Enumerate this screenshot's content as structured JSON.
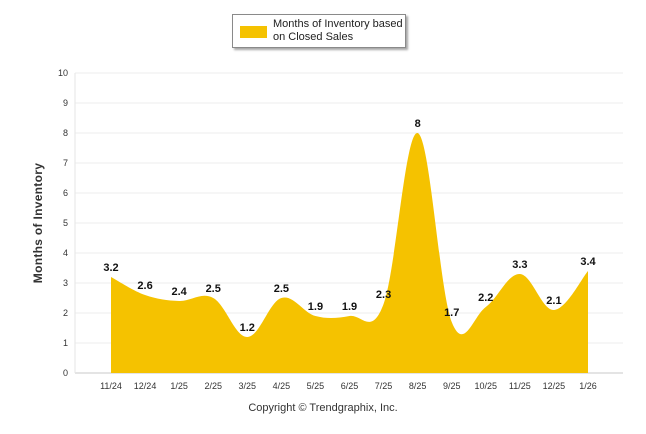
{
  "chart_data": {
    "type": "area",
    "categories": [
      "11/24",
      "12/24",
      "1/25",
      "2/25",
      "3/25",
      "4/25",
      "5/25",
      "6/25",
      "7/25",
      "8/25",
      "9/25",
      "10/25",
      "11/25",
      "12/25",
      "1/26"
    ],
    "series": [
      {
        "name": "Months of Inventory based on Closed Sales",
        "values": [
          3.2,
          2.6,
          2.4,
          2.5,
          1.2,
          2.5,
          1.9,
          1.9,
          2.3,
          8,
          1.7,
          2.2,
          3.3,
          2.1,
          3.4
        ],
        "color": "#F5C200"
      }
    ],
    "ylabel": "Months of Inventory",
    "ylim": [
      0,
      10
    ],
    "yticks": [
      0,
      1,
      2,
      3,
      4,
      5,
      6,
      7,
      8,
      9,
      10
    ],
    "grid": true,
    "legend": "top-center",
    "data_labels": true
  },
  "legend": {
    "label": "Months of Inventory based on Closed Sales"
  },
  "footer": {
    "copyright": "Copyright © Trendgraphix, Inc."
  }
}
